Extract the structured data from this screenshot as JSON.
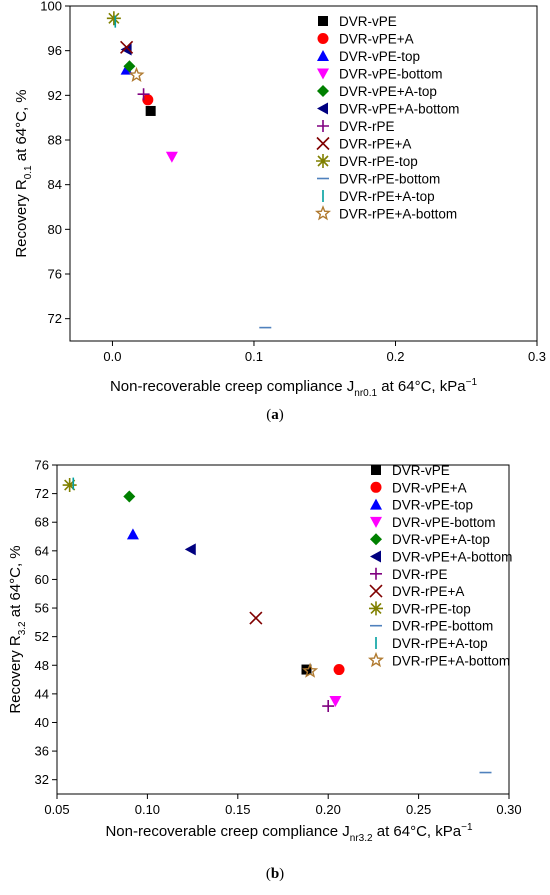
{
  "panels": [
    {
      "id": "a",
      "caption_label": "a",
      "chart_data": {
        "type": "scatter",
        "title": "",
        "xlabel": {
          "main": "Non-recoverable creep compliance J",
          "sub": "nr0.1",
          "rest": " at 64°C, kPa",
          "sup": "−1"
        },
        "ylabel": {
          "main": "Recovery R",
          "sub": "0.1",
          "rest": " at 64°C, %"
        },
        "xlim": [
          -0.03,
          0.3
        ],
        "ylim": [
          70,
          100
        ],
        "xticks": [
          0.0,
          0.1,
          0.2,
          0.3
        ],
        "xtick_labels": [
          "0.0",
          "0.1",
          "0.2",
          "0.3"
        ],
        "yticks": [
          72,
          76,
          80,
          84,
          88,
          92,
          96,
          100
        ],
        "ytick_labels": [
          "72",
          "76",
          "80",
          "84",
          "88",
          "92",
          "96",
          "100"
        ],
        "grid": false,
        "legend_position": "top-right",
        "series": [
          {
            "name": "DVR-vPE",
            "marker": "square",
            "color": "#000000",
            "x": 0.027,
            "y": 90.6
          },
          {
            "name": "DVR-vPE+A",
            "marker": "circle",
            "color": "#ff0000",
            "x": 0.025,
            "y": 91.6
          },
          {
            "name": "DVR-vPE-top",
            "marker": "triangle-up",
            "color": "#0000ff",
            "x": 0.01,
            "y": 94.3
          },
          {
            "name": "DVR-vPE-bottom",
            "marker": "triangle-down",
            "color": "#ff00ff",
            "x": 0.042,
            "y": 86.5
          },
          {
            "name": "DVR-vPE+A-top",
            "marker": "diamond",
            "color": "#008000",
            "x": 0.012,
            "y": 94.6
          },
          {
            "name": "DVR-vPE+A-bottom",
            "marker": "triangle-left",
            "color": "#000080",
            "x": 0.01,
            "y": 96.1
          },
          {
            "name": "DVR-rPE",
            "marker": "plus",
            "color": "#800080",
            "x": 0.022,
            "y": 92.1
          },
          {
            "name": "DVR-rPE+A",
            "marker": "cross",
            "color": "#800000",
            "x": 0.01,
            "y": 96.3
          },
          {
            "name": "DVR-rPE-top",
            "marker": "star",
            "color": "#808000",
            "x": 0.001,
            "y": 98.9
          },
          {
            "name": "DVR-rPE-bottom",
            "marker": "hline",
            "color": "#4f81bd",
            "x": 0.108,
            "y": 71.2
          },
          {
            "name": "DVR-rPE+A-top",
            "marker": "vline",
            "color": "#00a0a0",
            "x": 0.002,
            "y": 98.6
          },
          {
            "name": "DVR-rPE+A-bottom",
            "marker": "open-star",
            "color": "#b07a30",
            "x": 0.017,
            "y": 93.8
          }
        ]
      }
    },
    {
      "id": "b",
      "caption_label": "b",
      "chart_data": {
        "type": "scatter",
        "title": "",
        "xlabel": {
          "main": "Non-recoverable creep compliance J",
          "sub": "nr3.2",
          "rest": " at 64°C, kPa",
          "sup": "−1"
        },
        "ylabel": {
          "main": "Recovery R",
          "sub": "3.2",
          "rest": " at 64°C, %"
        },
        "xlim": [
          0.05,
          0.3
        ],
        "ylim": [
          30,
          76
        ],
        "xticks": [
          0.05,
          0.1,
          0.15,
          0.2,
          0.25,
          0.3
        ],
        "xtick_labels": [
          "0.05",
          "0.10",
          "0.15",
          "0.20",
          "0.25",
          "0.30"
        ],
        "yticks": [
          32,
          36,
          40,
          44,
          48,
          52,
          56,
          60,
          64,
          68,
          72,
          76
        ],
        "ytick_labels": [
          "32",
          "36",
          "40",
          "44",
          "48",
          "52",
          "56",
          "60",
          "64",
          "68",
          "72",
          "76"
        ],
        "grid": false,
        "legend_position": "top-right",
        "series": [
          {
            "name": "DVR-vPE",
            "marker": "square",
            "color": "#000000",
            "x": 0.188,
            "y": 47.4
          },
          {
            "name": "DVR-vPE+A",
            "marker": "circle",
            "color": "#ff0000",
            "x": 0.206,
            "y": 47.4
          },
          {
            "name": "DVR-vPE-top",
            "marker": "triangle-up",
            "color": "#0000ff",
            "x": 0.092,
            "y": 66.3
          },
          {
            "name": "DVR-vPE-bottom",
            "marker": "triangle-down",
            "color": "#ff00ff",
            "x": 0.204,
            "y": 43.0
          },
          {
            "name": "DVR-vPE+A-top",
            "marker": "diamond",
            "color": "#008000",
            "x": 0.09,
            "y": 71.6
          },
          {
            "name": "DVR-vPE+A-bottom",
            "marker": "triangle-left",
            "color": "#000080",
            "x": 0.124,
            "y": 64.2
          },
          {
            "name": "DVR-rPE",
            "marker": "plus",
            "color": "#800080",
            "x": 0.2,
            "y": 42.3
          },
          {
            "name": "DVR-rPE+A",
            "marker": "cross",
            "color": "#800000",
            "x": 0.16,
            "y": 54.6
          },
          {
            "name": "DVR-rPE-top",
            "marker": "star",
            "color": "#808000",
            "x": 0.057,
            "y": 73.2
          },
          {
            "name": "DVR-rPE-bottom",
            "marker": "hline",
            "color": "#4f81bd",
            "x": 0.287,
            "y": 33.0
          },
          {
            "name": "DVR-rPE+A-top",
            "marker": "vline",
            "color": "#00a0a0",
            "x": 0.059,
            "y": 73.4
          },
          {
            "name": "DVR-rPE+A-bottom",
            "marker": "open-star",
            "color": "#b07a30",
            "x": 0.19,
            "y": 47.2
          }
        ]
      }
    }
  ]
}
